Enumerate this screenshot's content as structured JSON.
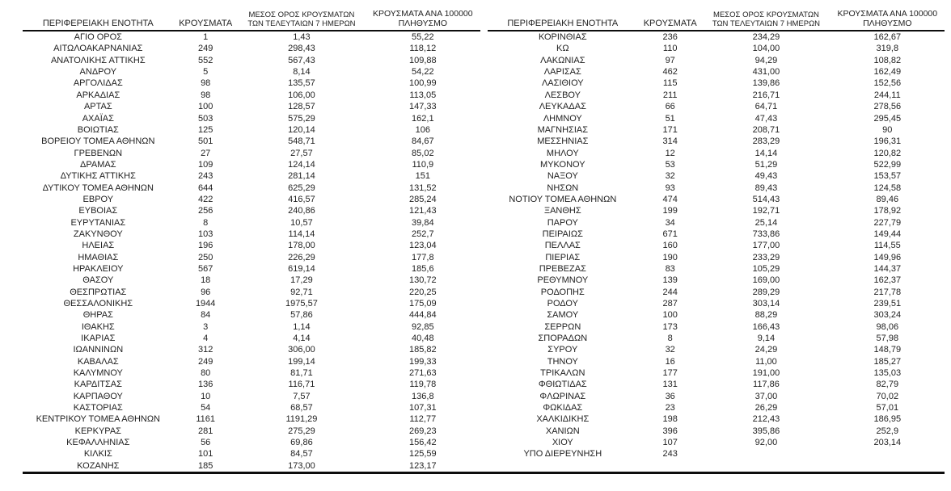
{
  "report": {
    "column_keys": [
      "region",
      "cases",
      "avg-7day",
      "per-100k"
    ],
    "header_lines": [
      [
        "ΠΕΡΙΦΕΡΕΙΑΚΗ ΕΝΟΤΗΤΑ"
      ],
      [
        "ΚΡΟΥΣΜΑΤΑ"
      ],
      [
        "ΜΕΣΟΣ ΟΡΟΣ ΚΡΟΥΣΜΑΤΩΝ",
        "ΤΩΝ ΤΕΛΕΥΤΑΙΩΝ 7 ΗΜΕΡΩΝ"
      ],
      [
        "ΚΡΟΥΣΜΑΤΑ ΑΝΑ 100000",
        "ΠΛΗΘΥΣΜΟ"
      ]
    ],
    "tables": [
      {
        "rows": [
          [
            "ΑΓΙΟ ΟΡΟΣ",
            "1",
            "1,43",
            "55,22"
          ],
          [
            "ΑΙΤΩΛΟΑΚΑΡΝΑΝΙΑΣ",
            "249",
            "298,43",
            "118,12"
          ],
          [
            "ΑΝΑΤΟΛΙΚΗΣ ΑΤΤΙΚΗΣ",
            "552",
            "567,43",
            "109,88"
          ],
          [
            "ΑΝΔΡΟΥ",
            "5",
            "8,14",
            "54,22"
          ],
          [
            "ΑΡΓΟΛΙΔΑΣ",
            "98",
            "135,57",
            "100,99"
          ],
          [
            "ΑΡΚΑΔΙΑΣ",
            "98",
            "106,00",
            "113,05"
          ],
          [
            "ΑΡΤΑΣ",
            "100",
            "128,57",
            "147,33"
          ],
          [
            "ΑΧΑΪΑΣ",
            "503",
            "575,29",
            "162,1"
          ],
          [
            "ΒΟΙΩΤΙΑΣ",
            "125",
            "120,14",
            "106"
          ],
          [
            "ΒΟΡΕΙΟΥ ΤΟΜΕΑ ΑΘΗΝΩΝ",
            "501",
            "548,71",
            "84,67"
          ],
          [
            "ΓΡΕΒΕΝΩΝ",
            "27",
            "27,57",
            "85,02"
          ],
          [
            "ΔΡΑΜΑΣ",
            "109",
            "124,14",
            "110,9"
          ],
          [
            "ΔΥΤΙΚΗΣ ΑΤΤΙΚΗΣ",
            "243",
            "281,14",
            "151"
          ],
          [
            "ΔΥΤΙΚΟΥ ΤΟΜΕΑ ΑΘΗΝΩΝ",
            "644",
            "625,29",
            "131,52"
          ],
          [
            "ΕΒΡΟΥ",
            "422",
            "416,57",
            "285,24"
          ],
          [
            "ΕΥΒΟΙΑΣ",
            "256",
            "240,86",
            "121,43"
          ],
          [
            "ΕΥΡΥΤΑΝΙΑΣ",
            "8",
            "10,57",
            "39,84"
          ],
          [
            "ΖΑΚΥΝΘΟΥ",
            "103",
            "114,14",
            "252,7"
          ],
          [
            "ΗΛΕΙΑΣ",
            "196",
            "178,00",
            "123,04"
          ],
          [
            "ΗΜΑΘΙΑΣ",
            "250",
            "226,29",
            "177,8"
          ],
          [
            "ΗΡΑΚΛΕΙΟΥ",
            "567",
            "619,14",
            "185,6"
          ],
          [
            "ΘΑΣΟΥ",
            "18",
            "17,29",
            "130,72"
          ],
          [
            "ΘΕΣΠΡΩΤΙΑΣ",
            "96",
            "92,71",
            "220,25"
          ],
          [
            "ΘΕΣΣΑΛΟΝΙΚΗΣ",
            "1944",
            "1975,57",
            "175,09"
          ],
          [
            "ΘΗΡΑΣ",
            "84",
            "57,86",
            "444,84"
          ],
          [
            "ΙΘΑΚΗΣ",
            "3",
            "1,14",
            "92,85"
          ],
          [
            "ΙΚΑΡΙΑΣ",
            "4",
            "4,14",
            "40,48"
          ],
          [
            "ΙΩΑΝΝΙΝΩΝ",
            "312",
            "306,00",
            "185,82"
          ],
          [
            "ΚΑΒΑΛΑΣ",
            "249",
            "199,14",
            "199,33"
          ],
          [
            "ΚΑΛΥΜΝΟΥ",
            "80",
            "81,71",
            "271,63"
          ],
          [
            "ΚΑΡΔΙΤΣΑΣ",
            "136",
            "116,71",
            "119,78"
          ],
          [
            "ΚΑΡΠΑΘΟΥ",
            "10",
            "7,57",
            "136,8"
          ],
          [
            "ΚΑΣΤΟΡΙΑΣ",
            "54",
            "68,57",
            "107,31"
          ],
          [
            "ΚΕΝΤΡΙΚΟΥ ΤΟΜΕΑ ΑΘΗΝΩΝ",
            "1161",
            "1191,29",
            "112,77"
          ],
          [
            "ΚΕΡΚΥΡΑΣ",
            "281",
            "275,29",
            "269,23"
          ],
          [
            "ΚΕΦΑΛΛΗΝΙΑΣ",
            "56",
            "69,86",
            "156,42"
          ],
          [
            "ΚΙΛΚΙΣ",
            "101",
            "84,57",
            "125,59"
          ],
          [
            "ΚΟΖΑΝΗΣ",
            "185",
            "173,00",
            "123,17"
          ]
        ]
      },
      {
        "rows": [
          [
            "ΚΟΡΙΝΘΙΑΣ",
            "236",
            "234,29",
            "162,67"
          ],
          [
            "ΚΩ",
            "110",
            "104,00",
            "319,8"
          ],
          [
            "ΛΑΚΩΝΙΑΣ",
            "97",
            "94,29",
            "108,82"
          ],
          [
            "ΛΑΡΙΣΑΣ",
            "462",
            "431,00",
            "162,49"
          ],
          [
            "ΛΑΣΙΘΙΟΥ",
            "115",
            "139,86",
            "152,56"
          ],
          [
            "ΛΕΣΒΟΥ",
            "211",
            "216,71",
            "244,11"
          ],
          [
            "ΛΕΥΚΑΔΑΣ",
            "66",
            "64,71",
            "278,56"
          ],
          [
            "ΛΗΜΝΟΥ",
            "51",
            "47,43",
            "295,45"
          ],
          [
            "ΜΑΓΝΗΣΙΑΣ",
            "171",
            "208,71",
            "90"
          ],
          [
            "ΜΕΣΣΗΝΙΑΣ",
            "314",
            "283,29",
            "196,31"
          ],
          [
            "ΜΗΛΟΥ",
            "12",
            "14,14",
            "120,82"
          ],
          [
            "ΜΥΚΟΝΟΥ",
            "53",
            "51,29",
            "522,99"
          ],
          [
            "ΝΑΞΟΥ",
            "32",
            "49,43",
            "153,57"
          ],
          [
            "ΝΗΣΩΝ",
            "93",
            "89,43",
            "124,58"
          ],
          [
            "ΝΟΤΙΟΥ ΤΟΜΕΑ ΑΘΗΝΩΝ",
            "474",
            "514,43",
            "89,46"
          ],
          [
            "ΞΑΝΘΗΣ",
            "199",
            "192,71",
            "178,92"
          ],
          [
            "ΠΑΡΟΥ",
            "34",
            "25,14",
            "227,79"
          ],
          [
            "ΠΕΙΡΑΙΩΣ",
            "671",
            "733,86",
            "149,44"
          ],
          [
            "ΠΕΛΛΑΣ",
            "160",
            "177,00",
            "114,55"
          ],
          [
            "ΠΙΕΡΙΑΣ",
            "190",
            "233,29",
            "149,96"
          ],
          [
            "ΠΡΕΒΕΖΑΣ",
            "83",
            "105,29",
            "144,37"
          ],
          [
            "ΡΕΘΥΜΝΟΥ",
            "139",
            "169,00",
            "162,37"
          ],
          [
            "ΡΟΔΟΠΗΣ",
            "244",
            "289,29",
            "217,78"
          ],
          [
            "ΡΟΔΟΥ",
            "287",
            "303,14",
            "239,51"
          ],
          [
            "ΣΑΜΟΥ",
            "100",
            "88,29",
            "303,24"
          ],
          [
            "ΣΕΡΡΩΝ",
            "173",
            "166,43",
            "98,06"
          ],
          [
            "ΣΠΟΡΑΔΩΝ",
            "8",
            "9,14",
            "57,98"
          ],
          [
            "ΣΥΡΟΥ",
            "32",
            "24,29",
            "148,79"
          ],
          [
            "ΤΗΝΟΥ",
            "16",
            "11,00",
            "185,27"
          ],
          [
            "ΤΡΙΚΑΛΩΝ",
            "177",
            "191,00",
            "135,03"
          ],
          [
            "ΦΘΙΩΤΙΔΑΣ",
            "131",
            "117,86",
            "82,79"
          ],
          [
            "ΦΛΩΡΙΝΑΣ",
            "36",
            "37,00",
            "70,02"
          ],
          [
            "ΦΩΚΙΔΑΣ",
            "23",
            "26,29",
            "57,01"
          ],
          [
            "ΧΑΛΚΙΔΙΚΗΣ",
            "198",
            "212,43",
            "186,95"
          ],
          [
            "ΧΑΝΙΩΝ",
            "396",
            "395,86",
            "252,9"
          ],
          [
            "ΧΙΟΥ",
            "107",
            "92,00",
            "203,14"
          ],
          [
            "ΥΠΟ ΔΙΕΡΕΥΝΗΣΗ",
            "243",
            "",
            ""
          ]
        ]
      }
    ]
  }
}
